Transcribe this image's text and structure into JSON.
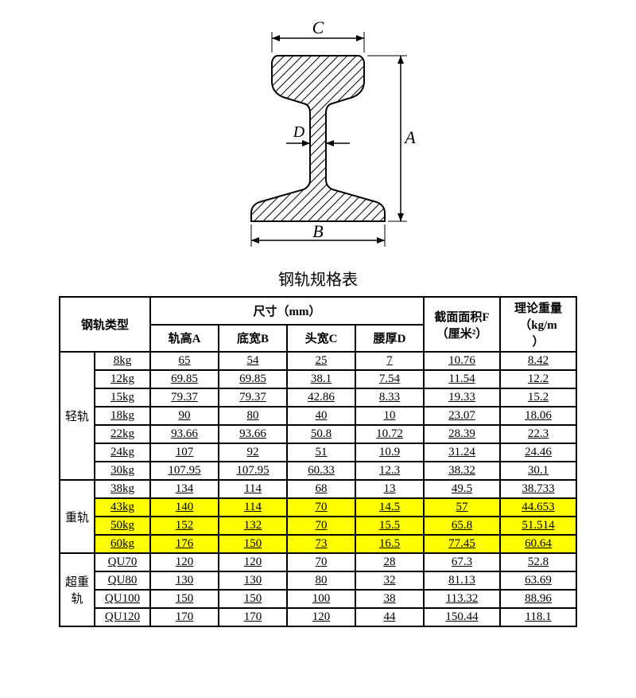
{
  "diagram": {
    "labels": {
      "A": "A",
      "B": "B",
      "C": "C",
      "D": "D"
    },
    "stroke": "#000000",
    "hatch": "#000000",
    "fill_bg": "#ffffff"
  },
  "table": {
    "title": "钢轨规格表",
    "headers": {
      "rail_type": "钢轨类型",
      "dimensions": "尺寸（mm）",
      "dim_A": "轨高A",
      "dim_B": "底宽B",
      "dim_C": "头宽C",
      "dim_D": "腰厚D",
      "area": "截面面积F（厘米²）",
      "weight": "理论重量（kg/m）",
      "area_l1": "截面面积F",
      "area_l2": "（厘米²）",
      "weight_l1": "理论重量",
      "weight_l2": "（kg/m",
      "weight_l3": "）"
    },
    "groups": [
      {
        "name": "轻轨",
        "rows": [
          {
            "spec": "8kg",
            "A": "65",
            "B": "54",
            "C": "25",
            "D": "7",
            "F": "10.76",
            "W": "8.42",
            "hl": false
          },
          {
            "spec": "12kg",
            "A": "69.85",
            "B": "69.85",
            "C": "38.1",
            "D": "7.54",
            "F": "11.54",
            "W": "12.2",
            "hl": false
          },
          {
            "spec": "15kg",
            "A": "79.37",
            "B": "79.37",
            "C": "42.86",
            "D": "8.33",
            "F": "19.33",
            "W": "15.2",
            "hl": false
          },
          {
            "spec": "18kg",
            "A": "90",
            "B": "80",
            "C": "40",
            "D": "10",
            "F": "23.07",
            "W": "18.06",
            "hl": false
          },
          {
            "spec": "22kg",
            "A": "93.66",
            "B": "93.66",
            "C": "50.8",
            "D": "10.72",
            "F": "28.39",
            "W": "22.3",
            "hl": false
          },
          {
            "spec": "24kg",
            "A": "107",
            "B": "92",
            "C": "51",
            "D": "10.9",
            "F": "31.24",
            "W": "24.46",
            "hl": false
          },
          {
            "spec": "30kg",
            "A": "107.95",
            "B": "107.95",
            "C": "60.33",
            "D": "12.3",
            "F": "38.32",
            "W": "30.1",
            "hl": false
          }
        ]
      },
      {
        "name": "重轨",
        "rows": [
          {
            "spec": "38kg",
            "A": "134",
            "B": "114",
            "C": "68",
            "D": "13",
            "F": "49.5",
            "W": "38.733",
            "hl": false
          },
          {
            "spec": "43kg",
            "A": "140",
            "B": "114",
            "C": "70",
            "D": "14.5",
            "F": "57",
            "W": "44.653",
            "hl": true
          },
          {
            "spec": "50kg",
            "A": "152",
            "B": "132",
            "C": "70",
            "D": "15.5",
            "F": "65.8",
            "W": "51.514",
            "hl": true
          },
          {
            "spec": "60kg",
            "A": "176",
            "B": "150",
            "C": "73",
            "D": "16.5",
            "F": "77.45",
            "W": "60.64",
            "hl": true
          }
        ]
      },
      {
        "name": "超重轨",
        "rows": [
          {
            "spec": "QU70",
            "A": "120",
            "B": "120",
            "C": "70",
            "D": "28",
            "F": "67.3",
            "W": "52.8",
            "hl": false
          },
          {
            "spec": "QU80",
            "A": "130",
            "B": "130",
            "C": "80",
            "D": "32",
            "F": "81.13",
            "W": "63.69",
            "hl": false
          },
          {
            "spec": "QU100",
            "A": "150",
            "B": "150",
            "C": "100",
            "D": "38",
            "F": "113.32",
            "W": "88.96",
            "hl": false
          },
          {
            "spec": "QU120",
            "A": "170",
            "B": "170",
            "C": "120",
            "D": "44",
            "F": "150.44",
            "W": "118.1",
            "hl": false
          }
        ]
      }
    ],
    "highlight_color": "#ffff00",
    "border_color": "#000000",
    "font_family": "SimSun",
    "font_size_pt": 11
  }
}
